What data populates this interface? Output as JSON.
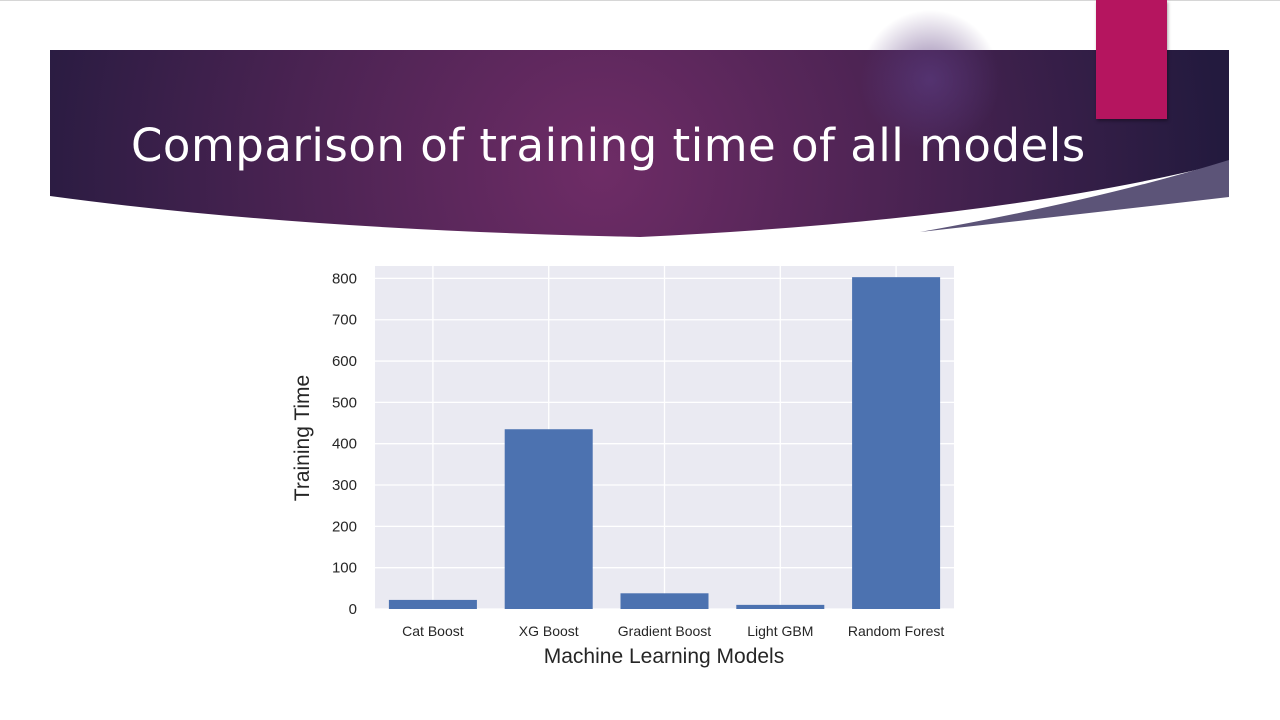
{
  "slide": {
    "title": "Comparison of training time of all models"
  },
  "colors": {
    "banner_dark": "#2a1c44",
    "banner_glow": "#6b2c63",
    "accent": "#b5155f",
    "bar": "#4c72b0",
    "plot_background": "#eaeaf2",
    "grid": "#ffffff"
  },
  "chart_data": {
    "type": "bar",
    "categories": [
      "Cat Boost",
      "XG Boost",
      "Gradient Boost",
      "Light GBM",
      "Random Forest"
    ],
    "values": [
      22,
      435,
      38,
      10,
      803
    ],
    "title": "",
    "xlabel": "Machine Learning Models",
    "ylabel": "Training Time",
    "ylim": [
      0,
      830
    ],
    "yticks": [
      0,
      100,
      200,
      300,
      400,
      500,
      600,
      700,
      800
    ],
    "grid": true,
    "legend": "none"
  }
}
